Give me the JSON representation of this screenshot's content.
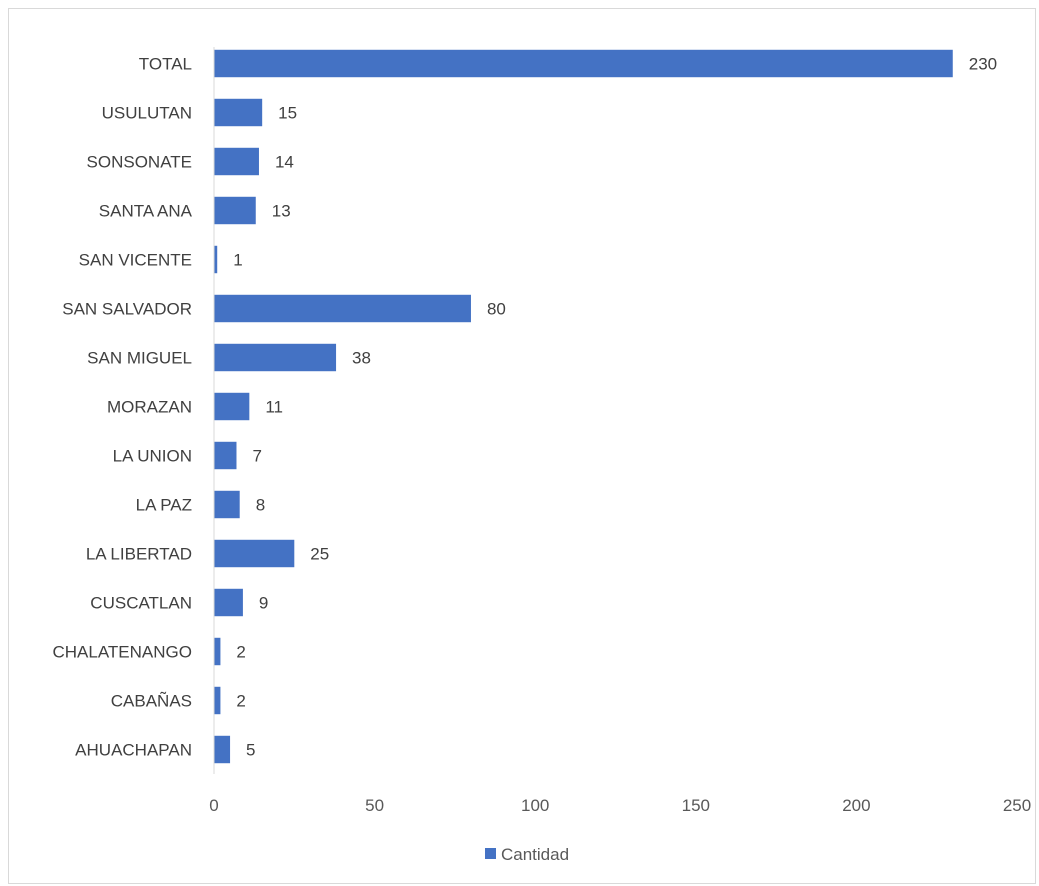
{
  "chart_data": {
    "type": "bar",
    "orientation": "horizontal",
    "categories": [
      "AHUACHAPAN",
      "CABAÑAS",
      "CHALATENANGO",
      "CUSCATLAN",
      "LA LIBERTAD",
      "LA PAZ",
      "LA UNION",
      "MORAZAN",
      "SAN MIGUEL",
      "SAN SALVADOR",
      "SAN VICENTE",
      "SANTA ANA",
      "SONSONATE",
      "USULUTAN",
      "TOTAL"
    ],
    "series": [
      {
        "name": "Cantidad",
        "values": [
          5,
          2,
          2,
          9,
          25,
          8,
          7,
          11,
          38,
          80,
          1,
          13,
          14,
          15,
          230
        ]
      }
    ],
    "x_ticks": [
      "0",
      "50",
      "100",
      "150",
      "200",
      "250"
    ],
    "xlim": [
      0,
      250
    ],
    "grid": false,
    "data_labels": true,
    "legend_position": "bottom",
    "colors": {
      "bar": "#4472C4",
      "axis": "#d9d9d9"
    }
  }
}
